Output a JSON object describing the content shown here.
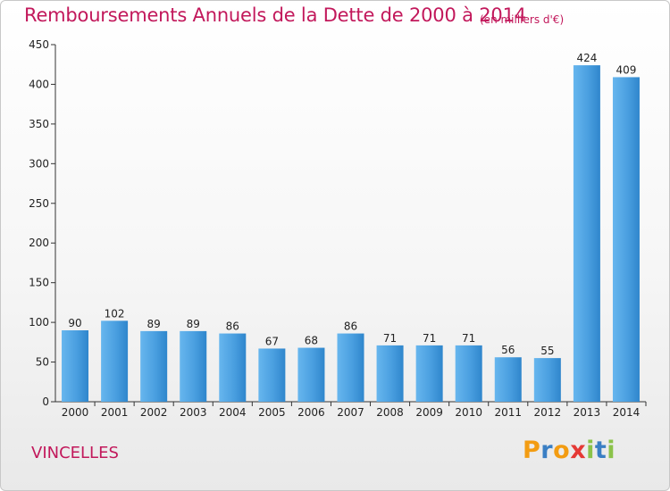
{
  "header": {
    "title": "Remboursements Annuels de la Dette de 2000 à 2014",
    "unit_note": "(en milliers d'€)"
  },
  "footer": {
    "town": "VINCELLES",
    "brand_letters": [
      "P",
      "r",
      "o",
      "x",
      "i",
      "t",
      "i"
    ],
    "brand_colors": [
      "#f39c12",
      "#3a7fc4",
      "#f39c12",
      "#e53935",
      "#8bc34a",
      "#3a7fc4",
      "#8bc34a"
    ]
  },
  "chart_data": {
    "type": "bar",
    "title": "Remboursements Annuels de la Dette de 2000 à 2014",
    "subtitle": "(en milliers d'€)",
    "categories": [
      "2000",
      "2001",
      "2002",
      "2003",
      "2004",
      "2005",
      "2006",
      "2007",
      "2008",
      "2009",
      "2010",
      "2011",
      "2012",
      "2013",
      "2014"
    ],
    "values": [
      90,
      102,
      89,
      89,
      86,
      67,
      68,
      86,
      71,
      71,
      71,
      56,
      55,
      424,
      409
    ],
    "data_labels": [
      "90",
      "102",
      "89",
      "89",
      "86",
      "67",
      "68",
      "86",
      "71",
      "71",
      "71",
      "56",
      "55",
      "424",
      "409"
    ],
    "ylim": [
      0,
      450
    ],
    "yticks": [
      0,
      50,
      100,
      150,
      200,
      250,
      300,
      350,
      400,
      450
    ],
    "xlabel": "",
    "ylabel": "",
    "grid": false,
    "bar_color": "#4a9fe0"
  }
}
